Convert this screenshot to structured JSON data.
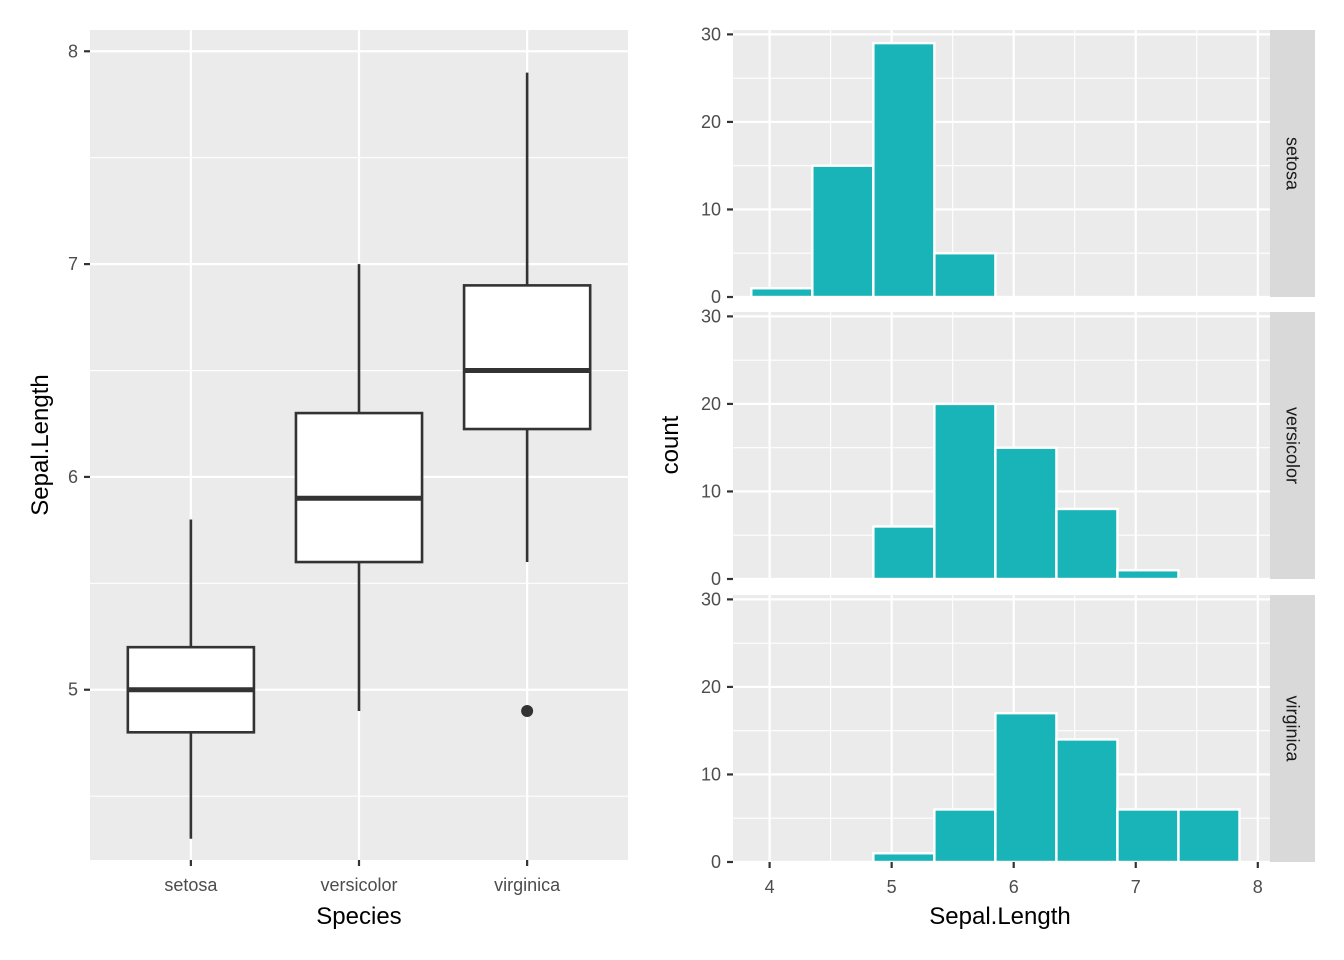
{
  "chart_data": [
    {
      "type": "box",
      "title": "",
      "xlabel": "Species",
      "ylabel": "Sepal.Length",
      "categories": [
        "setosa",
        "versicolor",
        "virginica"
      ],
      "ylim": [
        4.2,
        8.1
      ],
      "y_ticks": [
        5,
        6,
        7,
        8
      ],
      "grid": true,
      "colors": {
        "box_fill": "#ffffff",
        "box_stroke": "#333333",
        "panel": "#ebebeb"
      },
      "boxes": [
        {
          "category": "setosa",
          "whisker_low": 4.3,
          "q1": 4.8,
          "median": 5.0,
          "q3": 5.2,
          "whisker_high": 5.8,
          "outliers": []
        },
        {
          "category": "versicolor",
          "whisker_low": 4.9,
          "q1": 5.6,
          "median": 5.9,
          "q3": 6.3,
          "whisker_high": 7.0,
          "outliers": []
        },
        {
          "category": "virginica",
          "whisker_low": 5.6,
          "q1": 6.225,
          "median": 6.5,
          "q3": 6.9,
          "whisker_high": 7.9,
          "outliers": [
            4.9
          ]
        }
      ]
    },
    {
      "type": "bar",
      "subtype": "faceted-histogram",
      "title": "",
      "xlabel": "Sepal.Length",
      "ylabel": "count",
      "xlim": [
        3.7,
        8.1
      ],
      "ylim": [
        0,
        30.5
      ],
      "x_ticks": [
        4,
        5,
        6,
        7,
        8
      ],
      "y_ticks": [
        0,
        10,
        20,
        30
      ],
      "grid": true,
      "bin_edges": [
        3.85,
        4.35,
        4.85,
        5.35,
        5.85,
        6.35,
        6.85,
        7.35,
        7.85
      ],
      "colors": {
        "bar_fill": "#19b4b8",
        "bar_stroke": "#ffffff",
        "panel": "#ebebeb",
        "strip": "#d9d9d9"
      },
      "facets": [
        {
          "name": "setosa",
          "counts": [
            1,
            15,
            29,
            5,
            0,
            0,
            0,
            0
          ]
        },
        {
          "name": "versicolor",
          "counts": [
            0,
            0,
            6,
            20,
            15,
            8,
            1,
            0
          ]
        },
        {
          "name": "virginica",
          "counts": [
            0,
            0,
            1,
            6,
            17,
            14,
            6,
            6
          ]
        }
      ]
    }
  ]
}
